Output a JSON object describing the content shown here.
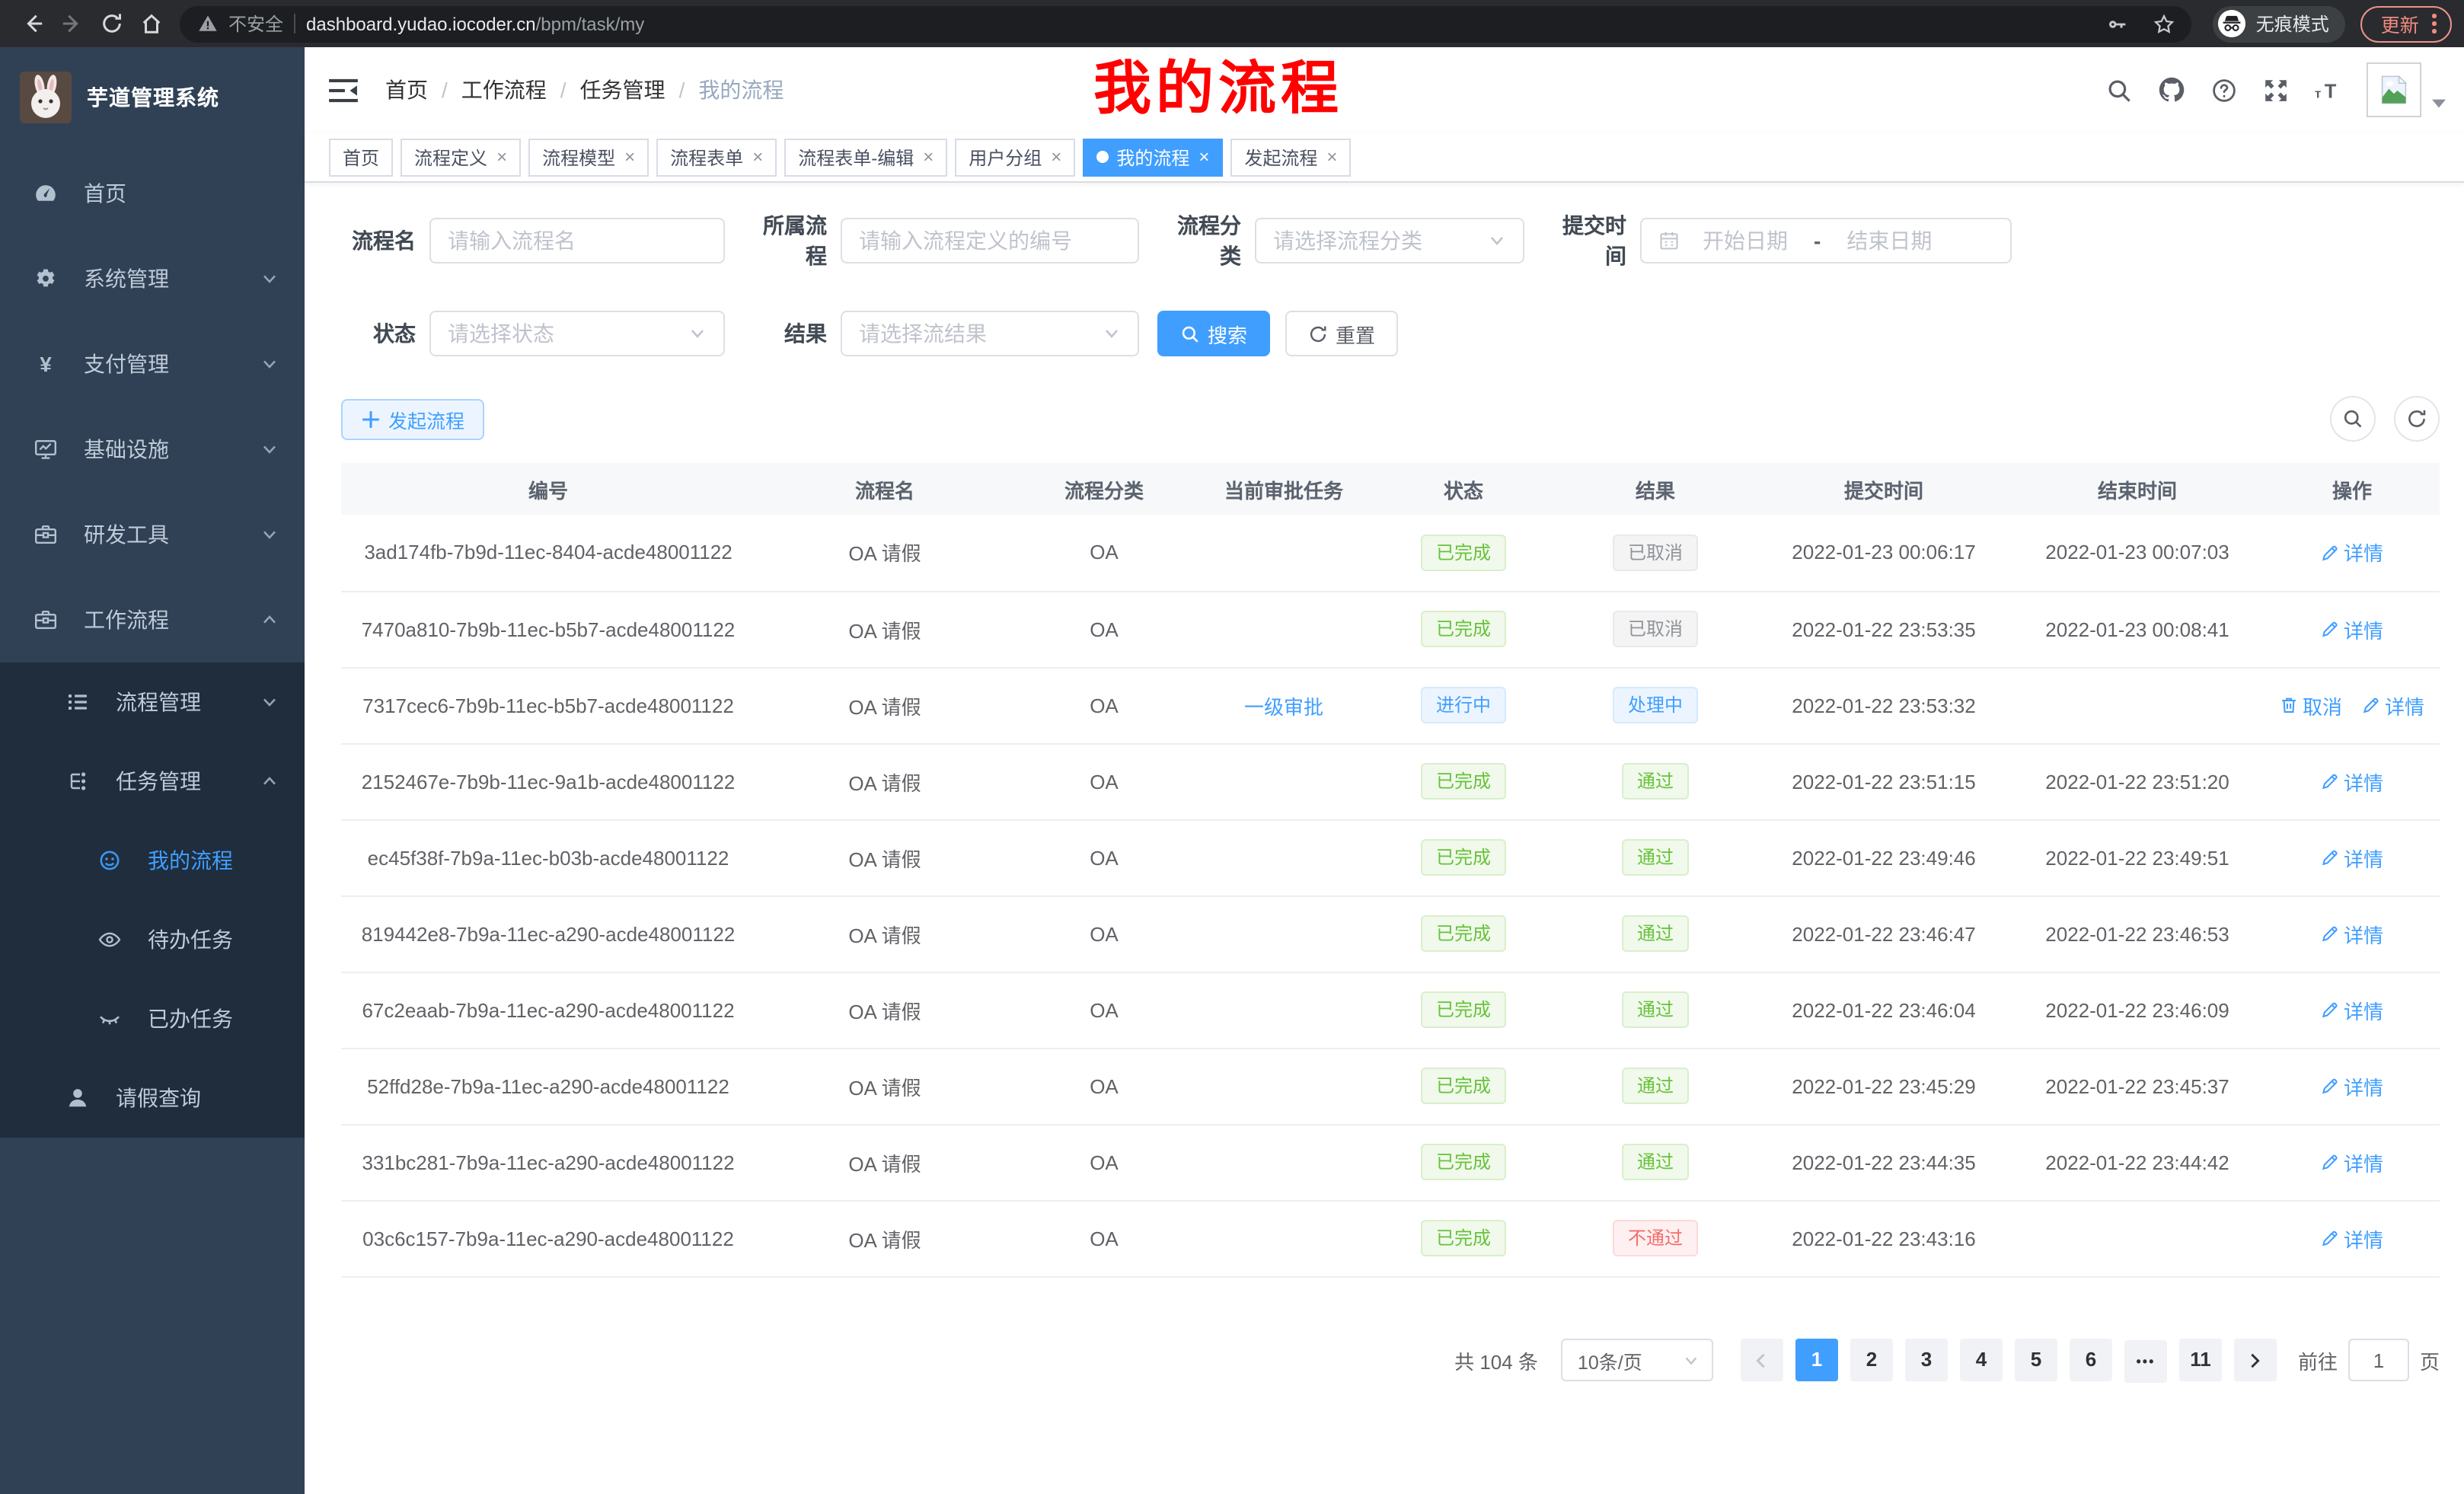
{
  "browser": {
    "security_label": "不安全",
    "url_host": "dashboard.yudao.iocoder.cn",
    "url_path": "/bpm/task/my",
    "incognito_label": "无痕模式",
    "update_label": "更新"
  },
  "sidebar": {
    "title": "芋道管理系统",
    "menu": [
      {
        "key": "home",
        "label": "首页",
        "icon": "dashboard-icon",
        "level": 1
      },
      {
        "key": "system",
        "label": "系统管理",
        "icon": "gear-icon",
        "level": 1,
        "arrow": "down"
      },
      {
        "key": "payment",
        "label": "支付管理",
        "icon": "yen-icon",
        "level": 1,
        "arrow": "down"
      },
      {
        "key": "infra",
        "label": "基础设施",
        "icon": "monitor-icon",
        "level": 1,
        "arrow": "down"
      },
      {
        "key": "devtools",
        "label": "研发工具",
        "icon": "toolbox-icon",
        "level": 1,
        "arrow": "down"
      },
      {
        "key": "workflow",
        "label": "工作流程",
        "icon": "briefcase-icon",
        "level": 1,
        "arrow": "up"
      },
      {
        "key": "process-mgmt",
        "label": "流程管理",
        "icon": "list-icon",
        "level": 2,
        "arrow": "down",
        "dark": true
      },
      {
        "key": "task-mgmt",
        "label": "任务管理",
        "icon": "tree-icon",
        "level": 2,
        "arrow": "up",
        "dark": true
      },
      {
        "key": "my-process",
        "label": "我的流程",
        "icon": "face-icon",
        "level": 3,
        "dark": true,
        "active": true
      },
      {
        "key": "todo-task",
        "label": "待办任务",
        "icon": "eye-icon",
        "level": 3,
        "dark": true
      },
      {
        "key": "done-task",
        "label": "已办任务",
        "icon": "eye-closed-icon",
        "level": 3,
        "dark": true
      },
      {
        "key": "leave-query",
        "label": "请假查询",
        "icon": "user-icon",
        "level": 2,
        "dark": true
      }
    ]
  },
  "header": {
    "breadcrumb": [
      "首页",
      "工作流程",
      "任务管理",
      "我的流程"
    ],
    "annotation_text": "我的流程"
  },
  "tabs": [
    {
      "key": "home",
      "label": "首页",
      "closable": false
    },
    {
      "key": "proc-def",
      "label": "流程定义",
      "closable": true
    },
    {
      "key": "proc-model",
      "label": "流程模型",
      "closable": true
    },
    {
      "key": "proc-form",
      "label": "流程表单",
      "closable": true
    },
    {
      "key": "proc-form-edit",
      "label": "流程表单-编辑",
      "closable": true
    },
    {
      "key": "user-group",
      "label": "用户分组",
      "closable": true
    },
    {
      "key": "my-process",
      "label": "我的流程",
      "closable": true,
      "active": true
    },
    {
      "key": "start-process",
      "label": "发起流程",
      "closable": true
    }
  ],
  "filters": {
    "name_label": "流程名",
    "name_placeholder": "请输入流程名",
    "process_label": "所属流程",
    "process_placeholder": "请输入流程定义的编号",
    "category_label": "流程分类",
    "category_placeholder": "请选择流程分类",
    "submit_label": "提交时间",
    "date_start": "开始日期",
    "date_sep": "-",
    "date_end": "结束日期",
    "status_label": "状态",
    "status_placeholder": "请选择状态",
    "result_label": "结果",
    "result_placeholder": "请选择流结果",
    "search_label": "搜索",
    "reset_label": "重置"
  },
  "toolbar": {
    "create_label": "发起流程"
  },
  "table": {
    "headers": [
      "编号",
      "流程名",
      "流程分类",
      "当前审批任务",
      "状态",
      "结果",
      "提交时间",
      "结束时间",
      "操作"
    ],
    "rows": [
      {
        "id": "3ad174fb-7b9d-11ec-8404-acde48001122",
        "name": "OA 请假",
        "category": "OA",
        "task": "",
        "status": {
          "label": "已完成",
          "type": "success"
        },
        "result": {
          "label": "已取消",
          "type": "info"
        },
        "submit_time": "2022-01-23 00:06:17",
        "end_time": "2022-01-23 00:07:03",
        "actions": [
          {
            "label": "详情",
            "icon": "edit-icon"
          }
        ]
      },
      {
        "id": "7470a810-7b9b-11ec-b5b7-acde48001122",
        "name": "OA 请假",
        "category": "OA",
        "task": "",
        "status": {
          "label": "已完成",
          "type": "success"
        },
        "result": {
          "label": "已取消",
          "type": "info"
        },
        "submit_time": "2022-01-22 23:53:35",
        "end_time": "2022-01-23 00:08:41",
        "actions": [
          {
            "label": "详情",
            "icon": "edit-icon"
          }
        ]
      },
      {
        "id": "7317cec6-7b9b-11ec-b5b7-acde48001122",
        "name": "OA 请假",
        "category": "OA",
        "task": "一级审批",
        "status": {
          "label": "进行中",
          "type": "primary"
        },
        "result": {
          "label": "处理中",
          "type": "primary"
        },
        "submit_time": "2022-01-22 23:53:32",
        "end_time": "",
        "actions": [
          {
            "label": "取消",
            "icon": "trash-icon"
          },
          {
            "label": "详情",
            "icon": "edit-icon"
          }
        ]
      },
      {
        "id": "2152467e-7b9b-11ec-9a1b-acde48001122",
        "name": "OA 请假",
        "category": "OA",
        "task": "",
        "status": {
          "label": "已完成",
          "type": "success"
        },
        "result": {
          "label": "通过",
          "type": "success"
        },
        "submit_time": "2022-01-22 23:51:15",
        "end_time": "2022-01-22 23:51:20",
        "actions": [
          {
            "label": "详情",
            "icon": "edit-icon"
          }
        ]
      },
      {
        "id": "ec45f38f-7b9a-11ec-b03b-acde48001122",
        "name": "OA 请假",
        "category": "OA",
        "task": "",
        "status": {
          "label": "已完成",
          "type": "success"
        },
        "result": {
          "label": "通过",
          "type": "success"
        },
        "submit_time": "2022-01-22 23:49:46",
        "end_time": "2022-01-22 23:49:51",
        "actions": [
          {
            "label": "详情",
            "icon": "edit-icon"
          }
        ]
      },
      {
        "id": "819442e8-7b9a-11ec-a290-acde48001122",
        "name": "OA 请假",
        "category": "OA",
        "task": "",
        "status": {
          "label": "已完成",
          "type": "success"
        },
        "result": {
          "label": "通过",
          "type": "success"
        },
        "submit_time": "2022-01-22 23:46:47",
        "end_time": "2022-01-22 23:46:53",
        "actions": [
          {
            "label": "详情",
            "icon": "edit-icon"
          }
        ]
      },
      {
        "id": "67c2eaab-7b9a-11ec-a290-acde48001122",
        "name": "OA 请假",
        "category": "OA",
        "task": "",
        "status": {
          "label": "已完成",
          "type": "success"
        },
        "result": {
          "label": "通过",
          "type": "success"
        },
        "submit_time": "2022-01-22 23:46:04",
        "end_time": "2022-01-22 23:46:09",
        "actions": [
          {
            "label": "详情",
            "icon": "edit-icon"
          }
        ]
      },
      {
        "id": "52ffd28e-7b9a-11ec-a290-acde48001122",
        "name": "OA 请假",
        "category": "OA",
        "task": "",
        "status": {
          "label": "已完成",
          "type": "success"
        },
        "result": {
          "label": "通过",
          "type": "success"
        },
        "submit_time": "2022-01-22 23:45:29",
        "end_time": "2022-01-22 23:45:37",
        "actions": [
          {
            "label": "详情",
            "icon": "edit-icon"
          }
        ]
      },
      {
        "id": "331bc281-7b9a-11ec-a290-acde48001122",
        "name": "OA 请假",
        "category": "OA",
        "task": "",
        "status": {
          "label": "已完成",
          "type": "success"
        },
        "result": {
          "label": "通过",
          "type": "success"
        },
        "submit_time": "2022-01-22 23:44:35",
        "end_time": "2022-01-22 23:44:42",
        "actions": [
          {
            "label": "详情",
            "icon": "edit-icon"
          }
        ]
      },
      {
        "id": "03c6c157-7b9a-11ec-a290-acde48001122",
        "name": "OA 请假",
        "category": "OA",
        "task": "",
        "status": {
          "label": "已完成",
          "type": "success"
        },
        "result": {
          "label": "不通过",
          "type": "danger"
        },
        "submit_time": "2022-01-22 23:43:16",
        "end_time": "",
        "actions": [
          {
            "label": "详情",
            "icon": "edit-icon"
          }
        ]
      }
    ]
  },
  "pagination": {
    "total": "共 104 条",
    "page_size": "10条/页",
    "pages": [
      "1",
      "2",
      "3",
      "4",
      "5",
      "6",
      "•••",
      "11"
    ],
    "active_page": "1",
    "goto_label": "前往",
    "goto_value": "1",
    "goto_unit": "页"
  },
  "colors": {
    "primary": "#409eff",
    "success": "#67c23a",
    "info": "#909399",
    "danger": "#f56c6c",
    "annotation": "#fe0100"
  }
}
